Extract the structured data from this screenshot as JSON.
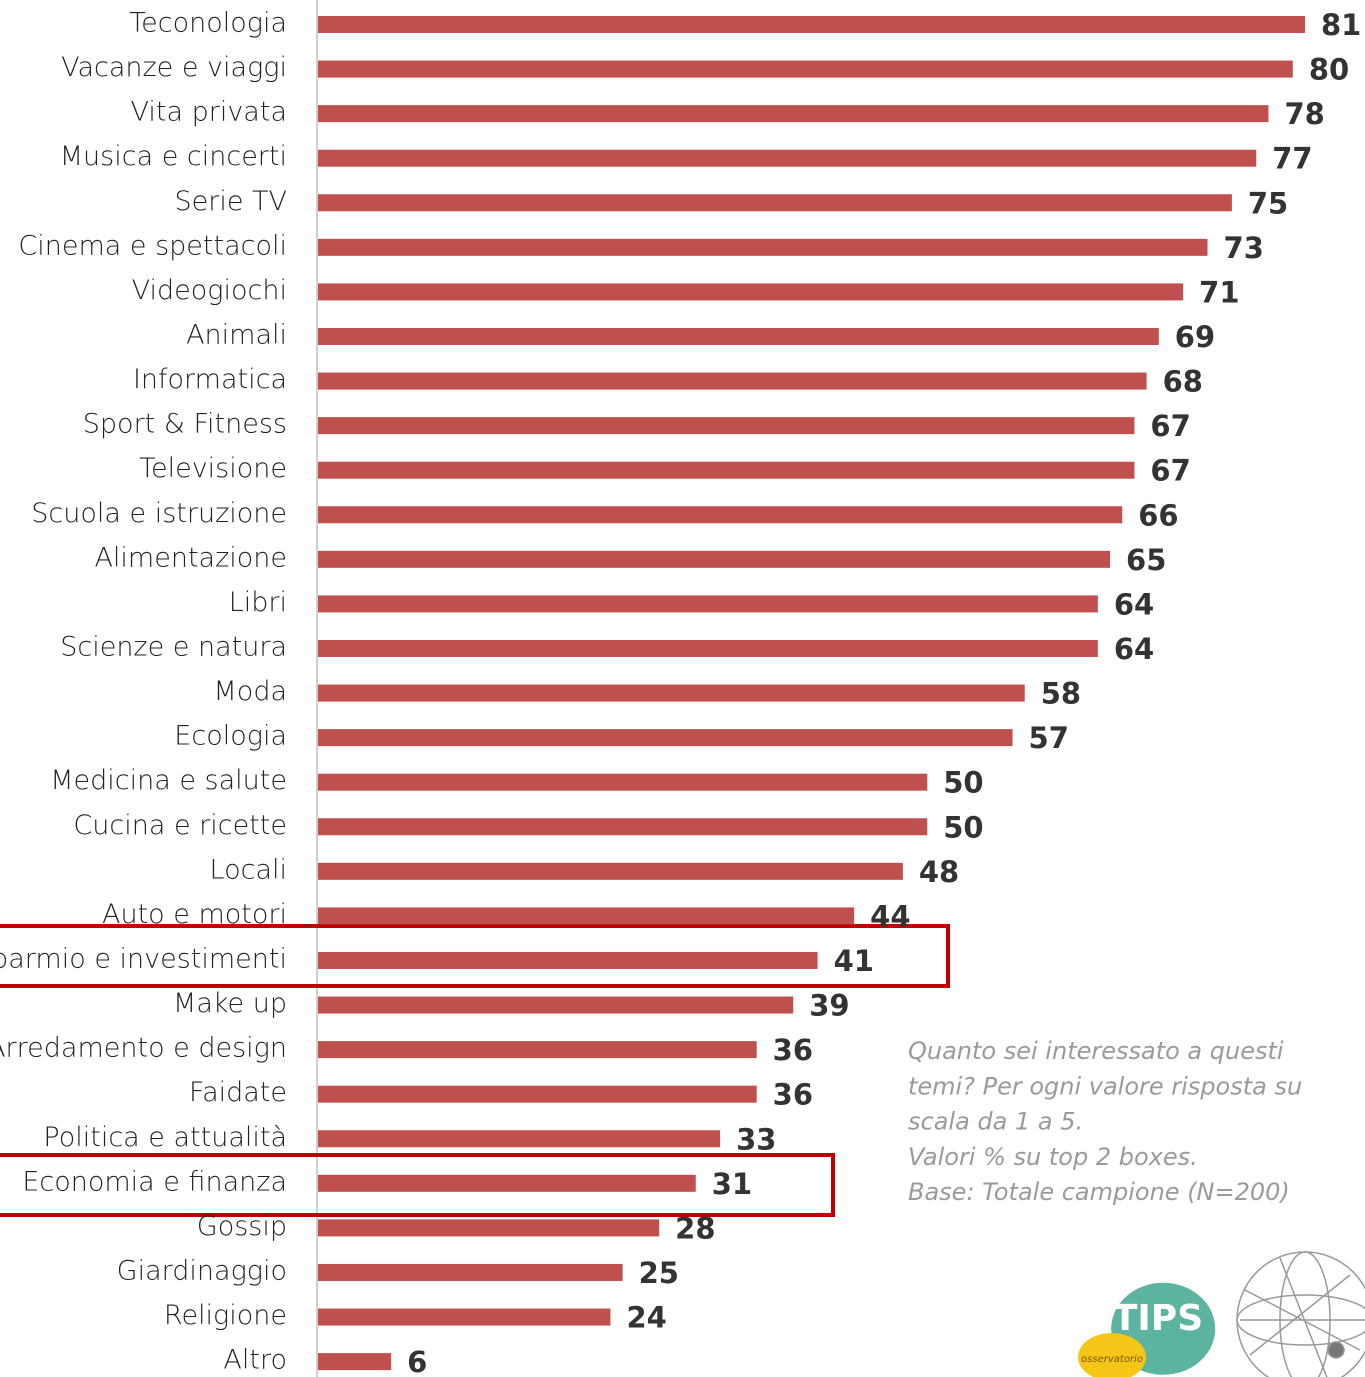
{
  "chart_data": {
    "type": "bar",
    "orientation": "horizontal",
    "categories": [
      "Teconologia",
      "Vacanze e viaggi",
      "Vita privata",
      "Musica e cincerti",
      "Serie TV",
      "Cinema e spettacoli",
      "Videogiochi",
      "Animali",
      "Informatica",
      "Sport & Fitness",
      "Televisione",
      "Scuola e istruzione",
      "Alimentazione",
      "Libri",
      "Scienze e natura",
      "Moda",
      "Ecologia",
      "Medicina e salute",
      "Cucina e ricette",
      "Locali",
      "Auto e motori",
      "Risparmio e investimenti",
      "Make up",
      "Arredamento e design",
      "Faidate",
      "Politica e attualità",
      "Economia e finanza",
      "Gossip",
      "Giardinaggio",
      "Religione",
      "Altro"
    ],
    "values": [
      81,
      80,
      78,
      77,
      75,
      73,
      71,
      69,
      68,
      67,
      67,
      66,
      65,
      64,
      64,
      58,
      57,
      50,
      50,
      48,
      44,
      41,
      39,
      36,
      36,
      33,
      31,
      28,
      25,
      24,
      6
    ],
    "color": "#c0504d",
    "xlim": [
      0,
      81
    ],
    "annotation": [
      "Quanto sei interessato a questi",
      "temi? Per ogni valore risposta su",
      "scala da 1 a 5.",
      "Valori % su top 2 boxes.",
      "Base: Totale campione (N=200)"
    ],
    "logo": [
      "TIPS",
      "osservatorio"
    ]
  }
}
